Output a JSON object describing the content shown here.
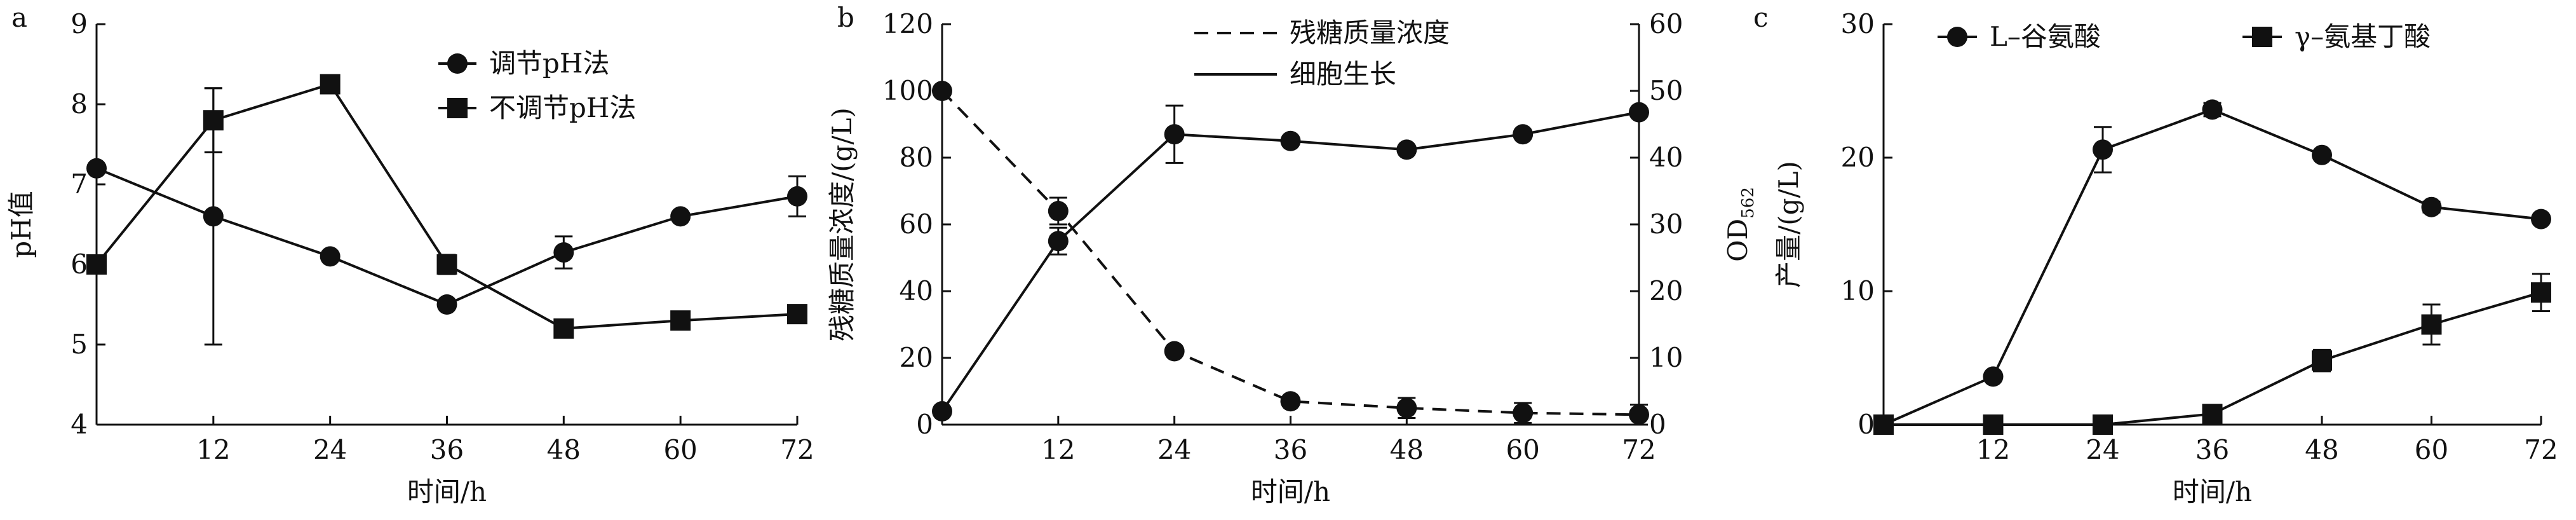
{
  "chart_data": [
    {
      "panel_label": "a",
      "type": "line",
      "xlabel": "时间/h",
      "ylabel": "pH值",
      "ylim": [
        4,
        9
      ],
      "yticks": [
        "4",
        "5",
        "6",
        "7",
        "8",
        "9"
      ],
      "xlim": [
        0,
        72
      ],
      "xticks": [
        "12",
        "24",
        "36",
        "48",
        "60",
        "72"
      ],
      "legend_position": "top-right",
      "series": [
        {
          "name": "调节pH法",
          "marker": "circle",
          "line": "solid",
          "x": [
            0,
            12,
            24,
            36,
            48,
            60,
            72
          ],
          "y": [
            7.2,
            6.6,
            6.1,
            5.5,
            6.15,
            6.6,
            6.85
          ],
          "err": [
            0,
            1.6,
            0,
            0,
            0.2,
            0,
            0.25
          ]
        },
        {
          "name": "不调节pH法",
          "marker": "square",
          "line": "solid",
          "x": [
            0,
            12,
            24,
            36,
            48,
            60,
            72
          ],
          "y": [
            6.0,
            7.8,
            8.25,
            6.0,
            5.2,
            5.3,
            5.38
          ],
          "err": [
            0,
            0.4,
            0,
            0.12,
            0,
            0,
            0
          ]
        }
      ]
    },
    {
      "panel_label": "b",
      "type": "line",
      "xlabel": "时间/h",
      "ylabel": "残糖质量浓度/(g/L)",
      "ylim": [
        0,
        120
      ],
      "yticks": [
        "0",
        "20",
        "40",
        "60",
        "80",
        "100",
        "120"
      ],
      "ylabel_right": "OD",
      "ylabel_right_sub": "562",
      "ylim_right": [
        0,
        60
      ],
      "yticks_right": [
        "0",
        "10",
        "20",
        "30",
        "40",
        "50",
        "60"
      ],
      "xlim": [
        0,
        72
      ],
      "xticks": [
        "12",
        "24",
        "36",
        "48",
        "60",
        "72"
      ],
      "legend_position": "top-center",
      "series": [
        {
          "name": "残糖质量浓度",
          "marker": "circle",
          "line": "dashed",
          "axis": "left",
          "x": [
            0,
            12,
            24,
            36,
            48,
            60,
            72
          ],
          "y": [
            100,
            64,
            22,
            7,
            5,
            3.5,
            3
          ],
          "err": [
            0,
            4,
            0,
            0,
            3,
            3,
            3
          ]
        },
        {
          "name": "细胞生长",
          "marker": "circle",
          "line": "solid",
          "axis": "right",
          "x": [
            0,
            12,
            24,
            36,
            48,
            60,
            72
          ],
          "y": [
            2,
            27.5,
            43.5,
            42.5,
            41.2,
            43.5,
            46.8
          ],
          "err": [
            0,
            2,
            4.3,
            0,
            0,
            0,
            0
          ]
        }
      ]
    },
    {
      "panel_label": "c",
      "type": "line",
      "xlabel": "时间/h",
      "ylabel": "产量/(g/L)",
      "ylim": [
        0,
        30
      ],
      "yticks": [
        "0",
        "10",
        "20",
        "30"
      ],
      "xlim": [
        0,
        72
      ],
      "xticks": [
        "12",
        "24",
        "36",
        "48",
        "60",
        "72"
      ],
      "legend_position": "top",
      "series": [
        {
          "name": "L–谷氨酸",
          "marker": "circle",
          "line": "solid",
          "x": [
            0,
            12,
            24,
            36,
            48,
            60,
            72
          ],
          "y": [
            0,
            3.6,
            20.6,
            23.6,
            20.2,
            16.3,
            15.4
          ],
          "err": [
            0,
            0,
            1.7,
            0.5,
            0,
            0.4,
            0
          ]
        },
        {
          "name": "γ–氨基丁酸",
          "marker": "square",
          "line": "solid",
          "x": [
            0,
            12,
            24,
            36,
            48,
            60,
            72
          ],
          "y": [
            0,
            0,
            0,
            0.8,
            4.8,
            7.5,
            9.9
          ],
          "err": [
            0,
            0,
            0,
            0,
            0.8,
            1.5,
            1.4
          ]
        }
      ]
    }
  ]
}
